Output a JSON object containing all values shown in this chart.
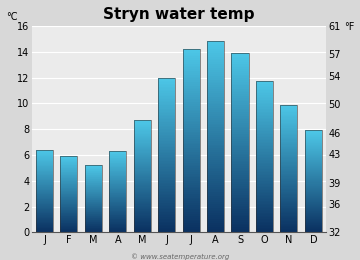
{
  "title": "Stryn water temp",
  "months": [
    "J",
    "F",
    "M",
    "A",
    "M",
    "J",
    "J",
    "A",
    "S",
    "O",
    "N",
    "D"
  ],
  "values_c": [
    6.4,
    5.9,
    5.2,
    6.3,
    8.7,
    12.0,
    14.2,
    14.8,
    13.9,
    11.7,
    9.9,
    7.9
  ],
  "ylabel_left": "°C",
  "ylabel_right": "°F",
  "ylim_c": [
    0,
    16
  ],
  "yticks_c": [
    0,
    2,
    4,
    6,
    8,
    10,
    12,
    14,
    16
  ],
  "yticks_f": [
    32,
    36,
    39,
    43,
    46,
    50,
    54,
    57,
    61
  ],
  "bar_color_top": "#4dc8e8",
  "bar_color_bottom": "#0a3060",
  "background_color": "#d8d8d8",
  "plot_bg_color": "#ebebeb",
  "watermark": "© www.seatemperature.org",
  "title_fontsize": 11,
  "tick_fontsize": 7,
  "label_fontsize": 7,
  "bar_width": 0.7,
  "num_gradient_steps": 100
}
